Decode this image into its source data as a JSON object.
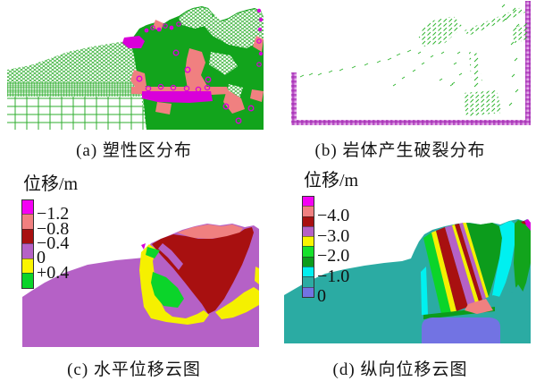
{
  "figure": {
    "captions": {
      "a": "(a) 塑性区分布",
      "b": "(b) 岩体产生破裂分布",
      "c": "(c) 水平位移云图",
      "d": "(d) 纵向位移云图"
    }
  },
  "legend_c": {
    "title": "位移/m",
    "colors": [
      "#F400F4",
      "#F08080",
      "#A81010",
      "#B561C6",
      "#FAF500",
      "#0BD42A"
    ],
    "labels": [
      "−1.2",
      "−0.8",
      "−0.4",
      "0",
      "+0.4"
    ]
  },
  "legend_d": {
    "title": "位移/m",
    "colors": [
      "#F400F4",
      "#F08080",
      "#A81010",
      "#B561C6",
      "#FAF500",
      "#16E12B",
      "#0C9C1C",
      "#00F0F0",
      "#2BABA3",
      "#7273E3"
    ],
    "labels": [
      "−4.0",
      "−3.0",
      "−2.0",
      "−1.0",
      "0"
    ]
  },
  "colors": {
    "magenta": "#D900D9",
    "salmon": "#F08080",
    "darkred": "#A81010",
    "orchid": "#B561C6",
    "yellow": "#F5F000",
    "bgreen": "#0BD42A",
    "green": "#12A41C",
    "dgreen": "#0C9C1C",
    "teal": "#2BABA3",
    "cyan": "#00F0F0",
    "periwinkle": "#7273E3",
    "mesh_line": "#2FAE2F",
    "fracture_mark": "#2EB52E",
    "boundary_purple": "#BC54C8",
    "boundary_purple_dark": "#A93BB8"
  },
  "chart_data": [
    {
      "id": "a",
      "type": "heatmap",
      "title": "(a) 塑性区分布",
      "description": "有限元网格斜坡剖面：左侧为细网格，底部为粗矩形网格；右侧实体绿色塑性区，含橙红色与品红色屈服单元斑块",
      "legend": null
    },
    {
      "id": "b",
      "type": "scatter",
      "title": "(b) 岩体产生破裂分布",
      "description": "稀疏绿色短划线表示破裂位置，模型左/底/右边界为品红色约束边界",
      "legend": null
    },
    {
      "id": "c",
      "type": "heatmap",
      "title": "(c) 水平位移云图",
      "legend_title": "位移/m",
      "legend_values": [
        "−1.2",
        "−0.8",
        "−0.4",
        "0",
        "+0.4"
      ],
      "legend_colors": [
        "#F400F4",
        "#F08080",
        "#A81010",
        "#B561C6",
        "#FAF500",
        "#0BD42A"
      ],
      "value_range": [
        -1.2,
        0.4
      ],
      "dominant_value": "−0.4~0 (紫色主体)"
    },
    {
      "id": "d",
      "type": "heatmap",
      "title": "(d) 纵向位移云图",
      "legend_title": "位移/m",
      "legend_values": [
        "−4.0",
        "−3.0",
        "−2.0",
        "−1.0",
        "0"
      ],
      "legend_colors": [
        "#F400F4",
        "#F08080",
        "#A81010",
        "#B561C6",
        "#FAF500",
        "#16E12B",
        "#0C9C1C",
        "#00F0F0",
        "#2BABA3",
        "#7273E3"
      ],
      "value_range": [
        -4.0,
        0
      ],
      "dominant_value": "0 (青色主体)"
    }
  ]
}
